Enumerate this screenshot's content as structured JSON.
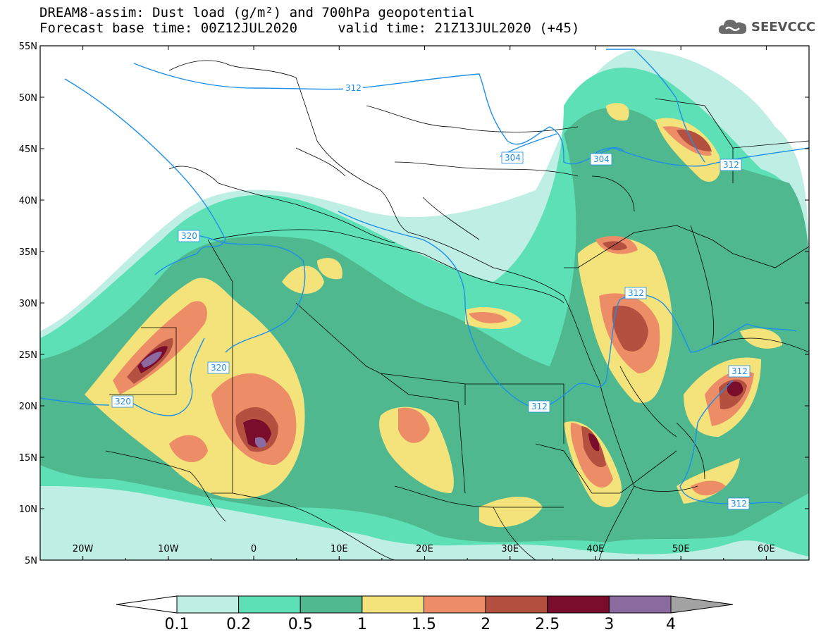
{
  "title_line1": "DREAM8-assim: Dust load (g/m²) and 700hPa geopotential",
  "title_line2": "Forecast base time: 00Z12JUL2020     valid time: 21Z13JUL2020 (+45)",
  "logo": {
    "text": "SEEVCCC",
    "icon": "cloud-icon"
  },
  "map": {
    "lon_range": [
      -25,
      65
    ],
    "lat_range": [
      5,
      55
    ],
    "lon_ticks": [
      "20W",
      "10W",
      "0",
      "10E",
      "20E",
      "30E",
      "40E",
      "50E",
      "60E"
    ],
    "lat_ticks": [
      "5N",
      "10N",
      "15N",
      "20N",
      "25N",
      "30N",
      "35N",
      "40N",
      "45N",
      "50N",
      "55N"
    ],
    "contour_color": "#1e8fe8",
    "contour_labels": [
      "312",
      "304",
      "304",
      "312",
      "320",
      "320",
      "320",
      "312",
      "312",
      "312",
      "312"
    ]
  },
  "colorbar": {
    "levels": [
      "0.1",
      "0.2",
      "0.5",
      "1",
      "1.5",
      "2",
      "2.5",
      "3",
      "4"
    ],
    "colors": [
      "#ffffff",
      "#bfeee4",
      "#5ee0b6",
      "#4fb88f",
      "#f3e37a",
      "#ec8d67",
      "#b4503f",
      "#7a0c2c",
      "#8b6aa0",
      "#a3a3a3"
    ]
  }
}
